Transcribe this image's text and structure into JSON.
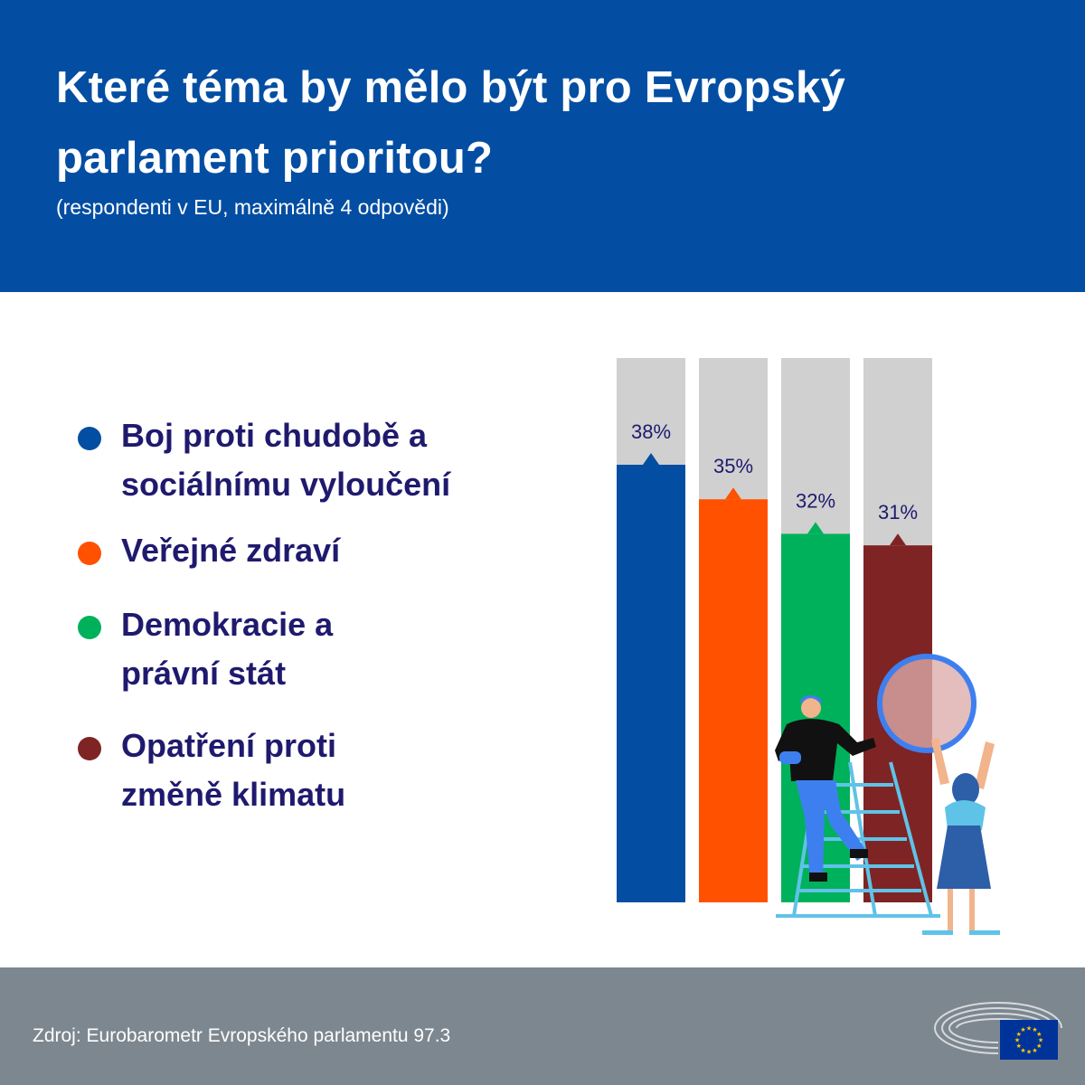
{
  "header": {
    "title": "Které téma by mělo být pro Evropský parlament prioritou?",
    "subtitle": "(respondenti v EU, maximálně 4 odpovědi)"
  },
  "legend": [
    {
      "label": "Boj proti chudobě a sociálnímu vyloučení",
      "color": "#034ea2"
    },
    {
      "label": "Veřejné zdraví",
      "color": "#ff5100"
    },
    {
      "label": "Demokracie a právní stát",
      "color": "#00b15c"
    },
    {
      "label": "Opatření proti změně klimatu",
      "color": "#7f2424"
    }
  ],
  "chart_data": {
    "type": "bar",
    "categories": [
      "Boj proti chudobě a sociálnímu vyloučení",
      "Veřejné zdraví",
      "Demokracie a právní stát",
      "Opatření proti změně klimatu"
    ],
    "values": [
      38,
      35,
      32,
      31
    ],
    "value_labels": [
      "38%",
      "35%",
      "32%",
      "31%"
    ],
    "colors": [
      "#034ea2",
      "#ff5100",
      "#00b15c",
      "#7f2424"
    ],
    "track_color": "#d0d0d0",
    "grid": false,
    "legend_position": "left"
  },
  "footer": {
    "source": "Zdroj: Eurobarometr Evropského parlamentu 97.3",
    "logo_icon": "european-parliament-logo-icon",
    "flag_icon": "eu-flag-icon"
  }
}
